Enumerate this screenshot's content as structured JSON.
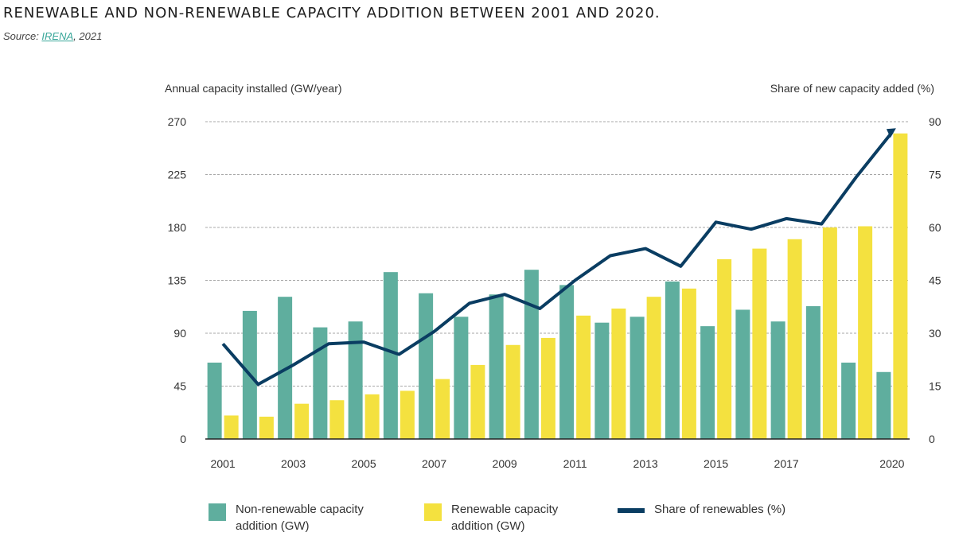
{
  "title": "RENEWABLE AND NON-RENEWABLE CAPACITY ADDITION BETWEEN 2001 AND 2020.",
  "source_prefix": "Source: ",
  "source_link": "IRENA",
  "source_suffix": ", 2021",
  "chart_data": {
    "type": "bar",
    "ylabel_left": "Annual capacity installed (GW/year)",
    "ylabel_right": "Share of new capacity added (%)",
    "ylim_left": [
      0,
      270
    ],
    "ylim_right": [
      0,
      90
    ],
    "yticks_left": [
      "0",
      "45",
      "90",
      "135",
      "180",
      "225",
      "270"
    ],
    "yticks_right": [
      "0",
      "15",
      "30",
      "45",
      "60",
      "75",
      "90"
    ],
    "x": [
      2001,
      2002,
      2003,
      2004,
      2005,
      2006,
      2007,
      2008,
      2009,
      2010,
      2011,
      2012,
      2013,
      2014,
      2015,
      2016,
      2017,
      2018,
      2019,
      2020
    ],
    "x_tick_labels": [
      "2001",
      "",
      "2003",
      "",
      "2005",
      "",
      "2007",
      "",
      "2009",
      "",
      "2011",
      "",
      "2013",
      "",
      "2015",
      "",
      "2017",
      "",
      "",
      "2020"
    ],
    "grid": true,
    "legend_position": "bottom",
    "series": [
      {
        "name": "Non-renewable capacity addition (GW)",
        "kind": "bar",
        "axis": "left",
        "color": "#5fae9e",
        "values": [
          65,
          109,
          121,
          95,
          100,
          142,
          124,
          104,
          123,
          144,
          131,
          99,
          104,
          134,
          96,
          110,
          100,
          113,
          65,
          57
        ]
      },
      {
        "name": "Renewable capacity addition (GW)",
        "kind": "bar",
        "axis": "left",
        "color": "#f4e13f",
        "values": [
          20,
          19,
          30,
          33,
          38,
          41,
          51,
          63,
          80,
          86,
          105,
          111,
          121,
          128,
          153,
          162,
          170,
          180,
          181,
          260
        ]
      },
      {
        "name": "Share of renewables (%)",
        "kind": "line",
        "axis": "right",
        "color": "#0a3d62",
        "values": [
          27,
          15.5,
          21,
          27,
          27.5,
          24,
          30.5,
          38.5,
          41,
          37,
          45,
          52,
          54,
          49,
          61.5,
          59.5,
          62.5,
          61,
          74.5,
          87
        ]
      }
    ]
  }
}
